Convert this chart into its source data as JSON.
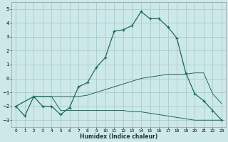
{
  "xlabel": "Humidex (Indice chaleur)",
  "bg_color": "#cce8e8",
  "grid_color": "#aacccc",
  "line_color": "#1a6b5a",
  "xlim": [
    -0.5,
    23.5
  ],
  "ylim": [
    -3.5,
    5.5
  ],
  "xticks": [
    0,
    1,
    2,
    3,
    4,
    5,
    6,
    7,
    8,
    9,
    10,
    11,
    12,
    13,
    14,
    15,
    16,
    17,
    18,
    19,
    20,
    21,
    22,
    23
  ],
  "yticks": [
    -3,
    -2,
    -1,
    0,
    1,
    2,
    3,
    4,
    5
  ],
  "line1_x": [
    0,
    1,
    2,
    3,
    4,
    5,
    6,
    7,
    8,
    9,
    10,
    11,
    12,
    13,
    14,
    15,
    16,
    17,
    18,
    19,
    20,
    21,
    22,
    23
  ],
  "line1_y": [
    -2.0,
    -2.7,
    -1.3,
    -2.0,
    -2.0,
    -2.6,
    -2.1,
    -0.6,
    -0.3,
    0.8,
    1.5,
    3.4,
    3.5,
    3.8,
    4.8,
    4.3,
    4.3,
    3.7,
    2.9,
    0.4,
    -1.1,
    -1.6,
    -2.3,
    -3.0
  ],
  "line2_x": [
    0,
    2,
    3,
    4,
    5,
    6,
    7,
    8,
    9,
    10,
    11,
    12,
    13,
    14,
    15,
    16,
    17,
    18,
    19,
    20,
    21,
    22,
    23
  ],
  "line2_y": [
    -2.0,
    -1.3,
    -1.3,
    -1.3,
    -1.3,
    -1.3,
    -1.3,
    -1.2,
    -1.0,
    -0.8,
    -0.6,
    -0.4,
    -0.2,
    0.0,
    0.1,
    0.2,
    0.3,
    0.3,
    0.3,
    0.4,
    0.4,
    -1.1,
    -1.8
  ],
  "line3_x": [
    0,
    2,
    3,
    4,
    5,
    6,
    7,
    8,
    9,
    10,
    11,
    12,
    13,
    14,
    15,
    16,
    17,
    18,
    19,
    20,
    21,
    22,
    23
  ],
  "line3_y": [
    -2.0,
    -1.3,
    -1.3,
    -1.3,
    -2.3,
    -2.3,
    -2.3,
    -2.3,
    -2.3,
    -2.3,
    -2.3,
    -2.3,
    -2.4,
    -2.4,
    -2.5,
    -2.6,
    -2.7,
    -2.8,
    -2.9,
    -3.0,
    -3.0,
    -3.0,
    -3.0
  ]
}
